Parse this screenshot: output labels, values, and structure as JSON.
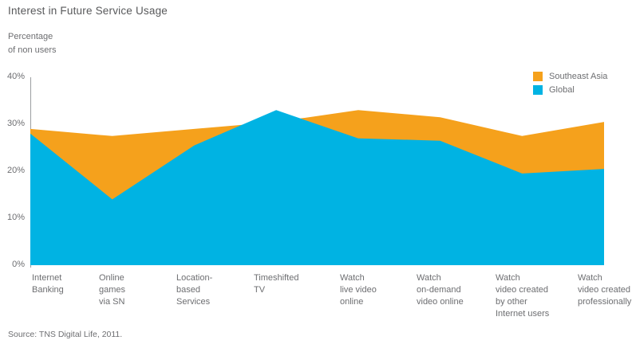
{
  "title": "Interest in Future Service Usage",
  "y_axis_caption": "Percentage\nof non users",
  "source": "Source: TNS Digital Life, 2011.",
  "colors": {
    "southeast_asia": "#F5A11C",
    "global": "#00B3E3",
    "axis_line": "#9B9EA1",
    "text_gray": "#6D6E71",
    "title_gray": "#58595B"
  },
  "legend": {
    "position": "top-right",
    "items": [
      {
        "label": "Southeast Asia",
        "color": "#F5A11C"
      },
      {
        "label": "Global",
        "color": "#00B3E3"
      }
    ]
  },
  "chart_data": {
    "type": "area",
    "title": "Interest in Future Service Usage",
    "ylabel": "Percentage of non users",
    "xlabel": "",
    "ylim": [
      0,
      40
    ],
    "ytick_labels_top_to_bottom": [
      "40%",
      "30%",
      "20%",
      "10%",
      "0%"
    ],
    "grid": false,
    "legend_position": "top-right",
    "categories": [
      "Internet\nBanking",
      "Online\ngames\nvia SN",
      "Location-\nbased\nServices",
      "Timeshifted\nTV",
      "Watch\nlive video\nonline",
      "Watch\non-demand\nvideo online",
      "Watch\nvideo created\nby other\nInternet users",
      "Watch\nvideo created\nprofessionally"
    ],
    "series": [
      {
        "name": "Southeast Asia",
        "color": "#F5A11C",
        "values": [
          29,
          27.5,
          29,
          30.5,
          33,
          31.5,
          27.5,
          30.5
        ]
      },
      {
        "name": "Global",
        "color": "#00B3E3",
        "values": [
          28,
          14,
          25.5,
          33,
          27,
          26.5,
          19.5,
          20.5
        ]
      }
    ]
  }
}
